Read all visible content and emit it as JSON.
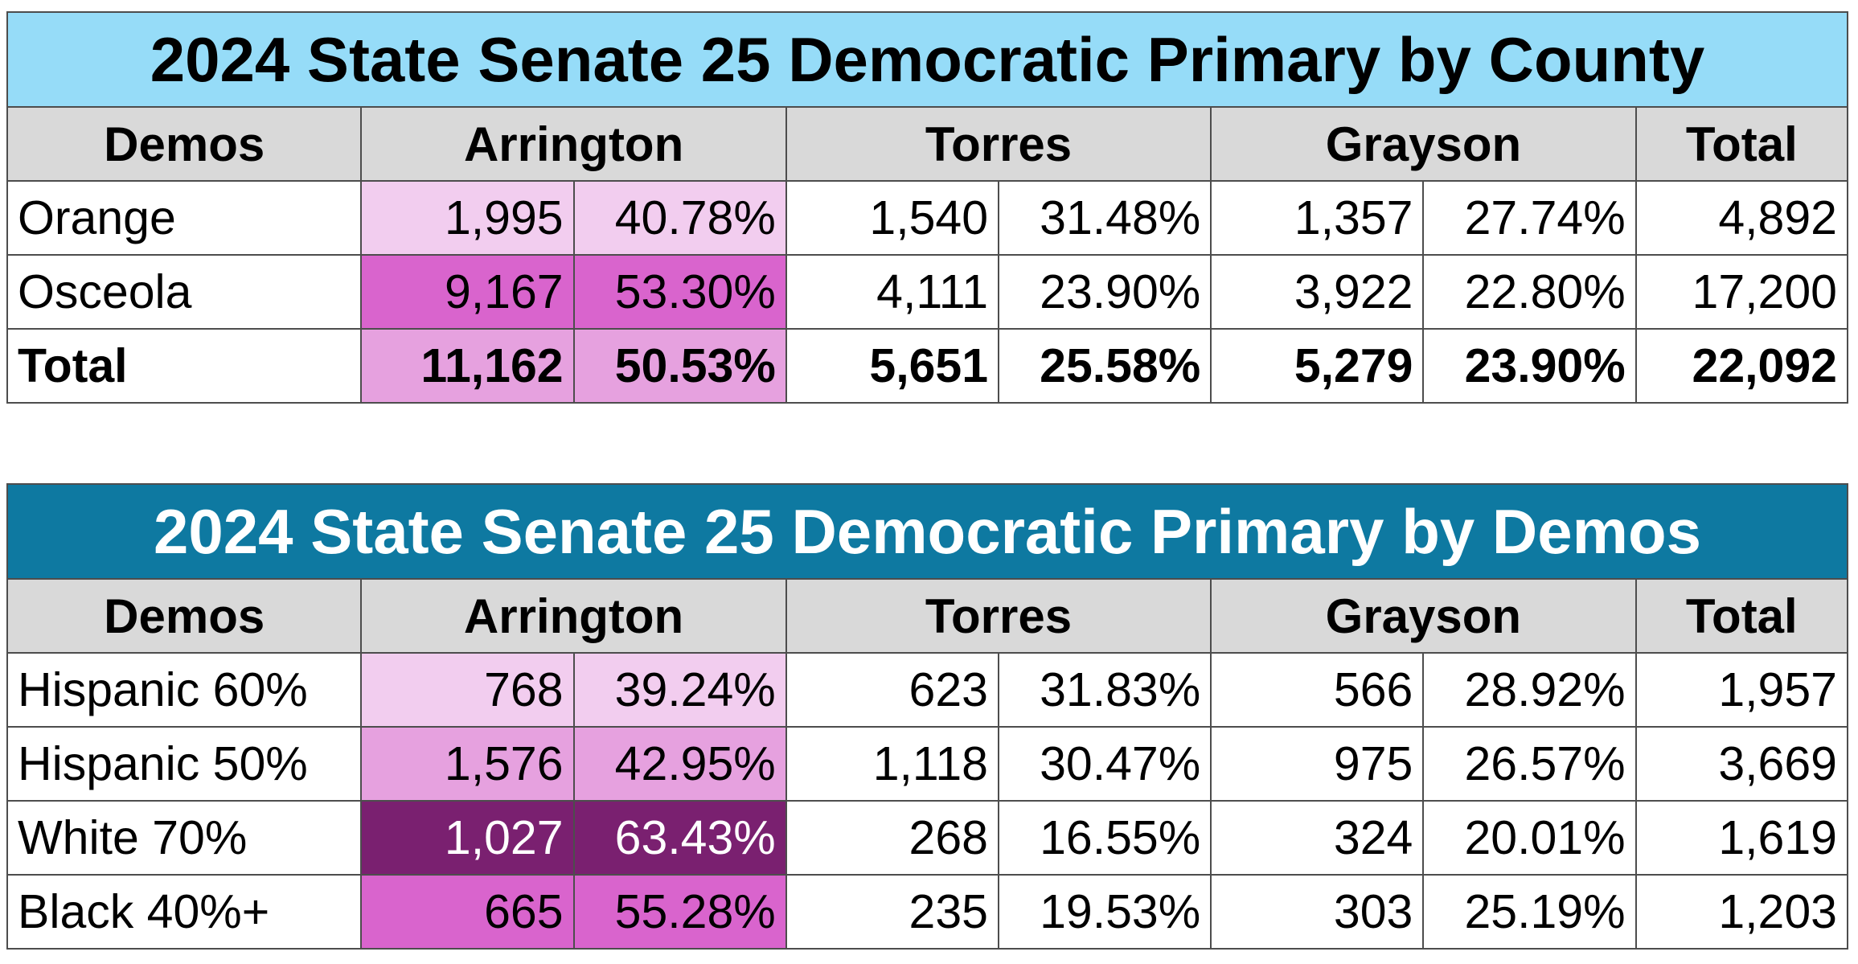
{
  "county_table": {
    "title": "2024 State Senate 25 Democratic Primary by County",
    "headers": {
      "demos": "Demos",
      "c1": "Arrington",
      "c2": "Torres",
      "c3": "Grayson",
      "total": "Total"
    },
    "rows": [
      {
        "label": "Orange",
        "a_n": "1,995",
        "a_p": "40.78%",
        "t_n": "1,540",
        "t_p": "31.48%",
        "g_n": "1,357",
        "g_p": "27.74%",
        "total": "4,892",
        "a_bg": "#f2cdef",
        "a_fg": "#000000",
        "bold": false
      },
      {
        "label": "Osceola",
        "a_n": "9,167",
        "a_p": "53.30%",
        "t_n": "4,111",
        "t_p": "23.90%",
        "g_n": "3,922",
        "g_p": "22.80%",
        "total": "17,200",
        "a_bg": "#d964cd",
        "a_fg": "#000000",
        "bold": false
      },
      {
        "label": "Total",
        "a_n": "11,162",
        "a_p": "50.53%",
        "t_n": "5,651",
        "t_p": "25.58%",
        "g_n": "5,279",
        "g_p": "23.90%",
        "total": "22,092",
        "a_bg": "#e6a1df",
        "a_fg": "#000000",
        "bold": true
      }
    ]
  },
  "demos_table": {
    "title": "2024 State Senate 25 Democratic Primary by Demos",
    "headers": {
      "demos": "Demos",
      "c1": "Arrington",
      "c2": "Torres",
      "c3": "Grayson",
      "total": "Total"
    },
    "rows": [
      {
        "label": "Hispanic 60%",
        "a_n": "768",
        "a_p": "39.24%",
        "t_n": "623",
        "t_p": "31.83%",
        "g_n": "566",
        "g_p": "28.92%",
        "total": "1,957",
        "a_bg": "#f2cdef",
        "a_fg": "#000000",
        "bold": false
      },
      {
        "label": "Hispanic 50%",
        "a_n": "1,576",
        "a_p": "42.95%",
        "t_n": "1,118",
        "t_p": "30.47%",
        "g_n": "975",
        "g_p": "26.57%",
        "total": "3,669",
        "a_bg": "#e6a1df",
        "a_fg": "#000000",
        "bold": false
      },
      {
        "label": "White 70%",
        "a_n": "1,027",
        "a_p": "63.43%",
        "t_n": "268",
        "t_p": "16.55%",
        "g_n": "324",
        "g_p": "20.01%",
        "total": "1,619",
        "a_bg": "#7a2070",
        "a_fg": "#ffffff",
        "bold": false
      },
      {
        "label": "Black 40%+",
        "a_n": "665",
        "a_p": "55.28%",
        "t_n": "235",
        "t_p": "19.53%",
        "g_n": "303",
        "g_p": "25.19%",
        "total": "1,203",
        "a_bg": "#d964cd",
        "a_fg": "#000000",
        "bold": false
      }
    ]
  }
}
